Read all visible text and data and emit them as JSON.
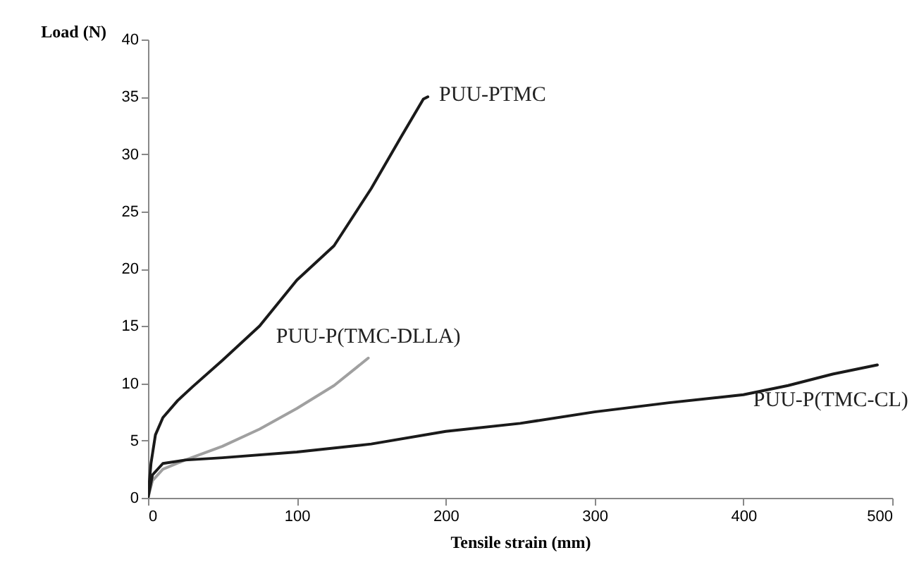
{
  "chart_data": {
    "type": "line",
    "xlabel": "Tensile strain (mm)",
    "ylabel": "Load (N)",
    "xlim": [
      0,
      500
    ],
    "xticks": [
      0,
      100,
      200,
      300,
      400,
      500
    ],
    "ylim": [
      0,
      40
    ],
    "yticks": [
      0,
      5,
      10,
      15,
      20,
      25,
      30,
      35,
      40
    ],
    "grid": false,
    "legend": false,
    "marker": "none",
    "line_style": "solid",
    "series": [
      {
        "name": "PUU-PTMC",
        "color": "#1a1a1a",
        "x": [
          0,
          2,
          5,
          10,
          20,
          30,
          50,
          75,
          100,
          125,
          150,
          170,
          185,
          188
        ],
        "values": [
          0,
          3,
          5.5,
          7,
          8.5,
          9.7,
          12,
          15,
          19,
          22,
          27,
          31.5,
          34.8,
          35
        ]
      },
      {
        "name": "PUU-P(TMC-DLLA)",
        "color": "#a0a0a0",
        "x": [
          0,
          3,
          10,
          25,
          50,
          75,
          100,
          125,
          148
        ],
        "values": [
          0,
          1.5,
          2.5,
          3.3,
          4.5,
          6,
          7.8,
          9.8,
          12.2
        ]
      },
      {
        "name": "PUU-P(TMC-CL)",
        "color": "#1a1a1a",
        "x": [
          0,
          3,
          10,
          25,
          50,
          100,
          150,
          200,
          250,
          300,
          350,
          400,
          430,
          460,
          490
        ],
        "values": [
          0,
          2,
          3,
          3.3,
          3.5,
          4,
          4.7,
          5.8,
          6.5,
          7.5,
          8.3,
          9,
          9.8,
          10.8,
          11.6
        ]
      }
    ]
  }
}
